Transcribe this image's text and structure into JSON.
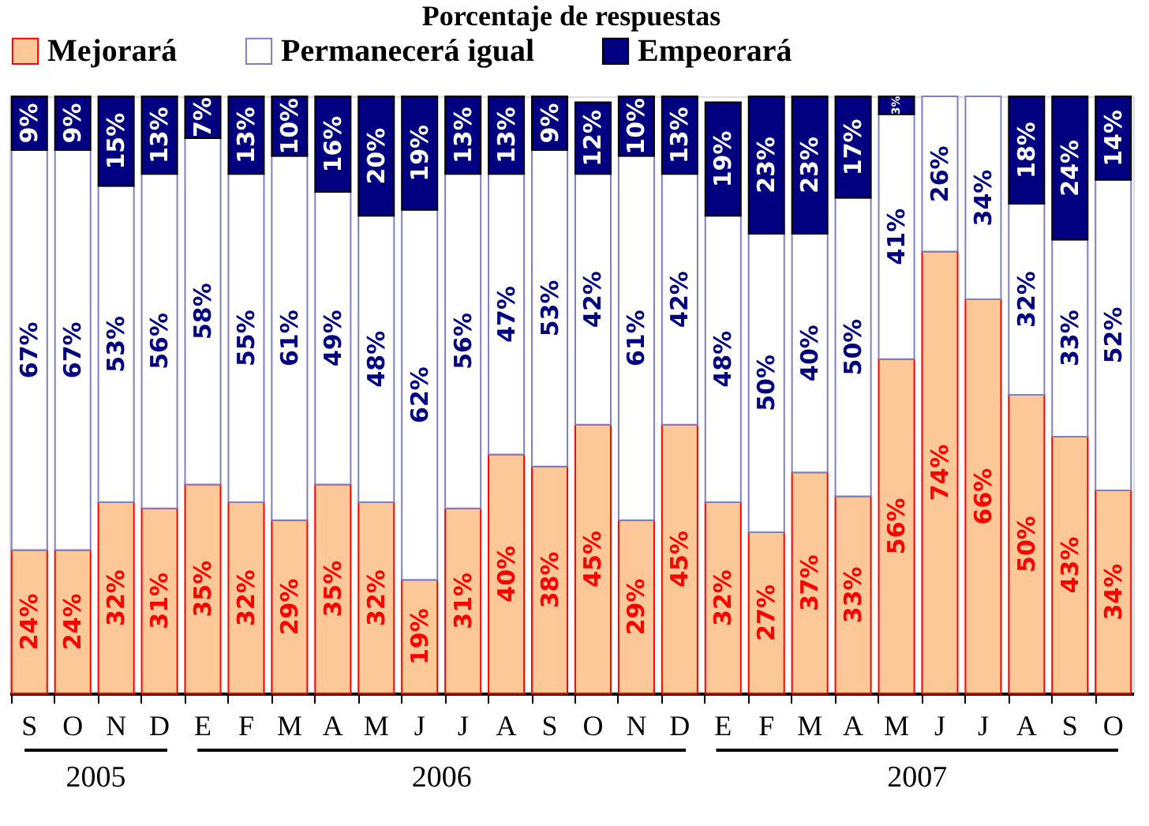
{
  "chart_data": {
    "type": "bar",
    "stacked": true,
    "title": "Porcentaje de respuestas",
    "categories": [
      "S",
      "O",
      "N",
      "D",
      "E",
      "F",
      "M",
      "A",
      "M",
      "J",
      "J",
      "A",
      "S",
      "O",
      "N",
      "D",
      "E",
      "F",
      "M",
      "A",
      "M",
      "J",
      "J",
      "A",
      "S",
      "O"
    ],
    "ylim": [
      0,
      100
    ],
    "tick_labels": "x",
    "legend": "top",
    "grid": false,
    "annotations": [
      "2005",
      "2006",
      "2007"
    ],
    "series": [
      {
        "name": "Mejorará",
        "color": "#fcc898",
        "values": [
          24,
          24,
          32,
          31,
          35,
          32,
          29,
          35,
          32,
          19,
          31,
          40,
          38,
          45,
          29,
          45,
          32,
          27,
          37,
          33,
          56,
          74,
          66,
          50,
          43,
          34
        ],
        "value_labels": [
          "24%",
          "24%",
          "32%",
          "31%",
          "35%",
          "32%",
          "29%",
          "35%",
          "32%",
          "19%",
          "31%",
          "40%",
          "38%",
          "45%",
          "29%",
          "45%",
          "32%",
          "27%",
          "37%",
          "33%",
          "56%",
          "74%",
          "66%",
          "50%",
          "43%",
          "34%"
        ]
      },
      {
        "name": "Permanecerá igual",
        "color": "#ffffff",
        "values": [
          67,
          67,
          53,
          56,
          58,
          55,
          61,
          49,
          48,
          62,
          56,
          47,
          53,
          42,
          61,
          42,
          48,
          50,
          40,
          50,
          41,
          26,
          34,
          32,
          33,
          52
        ],
        "value_labels": [
          "67%",
          "67%",
          "53%",
          "56%",
          "58%",
          "55%",
          "61%",
          "49%",
          "48%",
          "62%",
          "56%",
          "47%",
          "53%",
          "42%",
          "61%",
          "42%",
          "48%",
          "50%",
          "40%",
          "50%",
          "41%",
          "26%",
          "34%",
          "32%",
          "33%",
          "52%"
        ]
      },
      {
        "name": "Empeorará",
        "color": "#000080",
        "values": [
          9,
          9,
          15,
          13,
          7,
          13,
          10,
          16,
          20,
          19,
          13,
          13,
          9,
          12,
          10,
          13,
          19,
          23,
          23,
          17,
          3,
          null,
          null,
          18,
          24,
          14
        ],
        "value_labels": [
          "9%",
          "9%",
          "15%",
          "13%",
          "7%",
          "13%",
          "10%",
          "16%",
          "20%",
          "19%",
          "13%",
          "13%",
          "9%",
          "12%",
          "10%",
          "13%",
          "19%",
          "23%",
          "23%",
          "17%",
          "3%",
          null,
          null,
          "18%",
          "24%",
          "14%"
        ]
      }
    ]
  }
}
